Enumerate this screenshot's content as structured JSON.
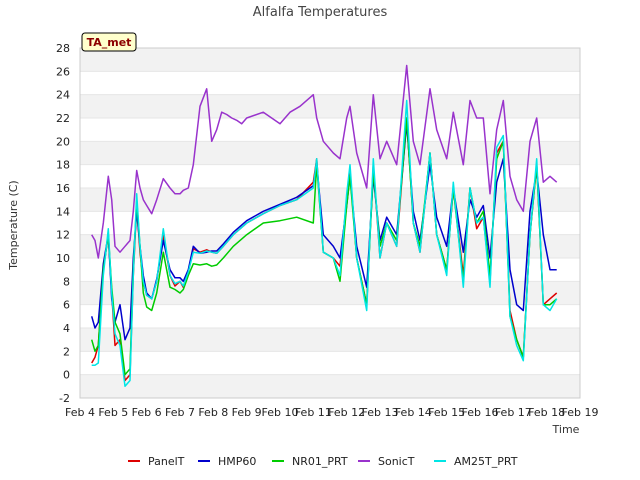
{
  "chart_data": {
    "type": "line",
    "title": "Alfalfa Temperatures",
    "xlabel": "Time",
    "ylabel": "Temperature (C)",
    "tag": "TA_met",
    "ylim": [
      -2,
      28
    ],
    "yticks": [
      -2,
      0,
      2,
      4,
      6,
      8,
      10,
      12,
      14,
      16,
      18,
      20,
      22,
      24,
      26,
      28
    ],
    "xlim": [
      4,
      19
    ],
    "xticks": [
      {
        "value": 4,
        "label": "Feb 4"
      },
      {
        "value": 5,
        "label": "Feb 5"
      },
      {
        "value": 6,
        "label": "Feb 6"
      },
      {
        "value": 7,
        "label": "Feb 7"
      },
      {
        "value": 8,
        "label": "Feb 8"
      },
      {
        "value": 9,
        "label": "Feb 9"
      },
      {
        "value": 10,
        "label": "Feb 10"
      },
      {
        "value": 11,
        "label": "Feb 11"
      },
      {
        "value": 12,
        "label": "Feb 12"
      },
      {
        "value": 13,
        "label": "Feb 13"
      },
      {
        "value": 14,
        "label": "Feb 14"
      },
      {
        "value": 15,
        "label": "Feb 15"
      },
      {
        "value": 16,
        "label": "Feb 16"
      },
      {
        "value": 17,
        "label": "Feb 17"
      },
      {
        "value": 18,
        "label": "Feb 18"
      },
      {
        "value": 19,
        "label": "Feb 19"
      }
    ],
    "grid": "horizontal bands",
    "legend_position": "bottom",
    "series": [
      {
        "name": "PanelT",
        "color": "#dd0000",
        "x": [
          4.35,
          4.45,
          4.55,
          4.7,
          4.85,
          4.95,
          5.05,
          5.2,
          5.35,
          5.5,
          5.6,
          5.7,
          5.8,
          5.9,
          6.0,
          6.15,
          6.3,
          6.5,
          6.7,
          6.85,
          7.0,
          7.1,
          7.25,
          7.4,
          7.6,
          7.8,
          7.95,
          8.1,
          8.3,
          8.6,
          9.0,
          9.5,
          10.0,
          10.5,
          11.0,
          11.1,
          11.3,
          11.6,
          11.8,
          12.0,
          12.1,
          12.3,
          12.6,
          12.8,
          13.0,
          13.2,
          13.5,
          13.8,
          14.0,
          14.2,
          14.5,
          14.7,
          15.0,
          15.2,
          15.5,
          15.7,
          15.9,
          16.1,
          16.3,
          16.5,
          16.7,
          16.9,
          17.1,
          17.3,
          17.5,
          17.7,
          17.9,
          18.1,
          18.3
        ],
        "y": [
          1.0,
          1.5,
          2.5,
          9.0,
          12.0,
          7.0,
          2.5,
          3.0,
          -0.5,
          0.0,
          8.5,
          14.5,
          10.5,
          8.0,
          6.8,
          6.5,
          8.0,
          12.0,
          8.5,
          7.6,
          8.0,
          7.5,
          8.8,
          10.8,
          10.5,
          10.7,
          10.5,
          10.4,
          11.0,
          12.0,
          13.0,
          13.8,
          14.5,
          15.0,
          16.5,
          18.5,
          10.5,
          10.0,
          9.3,
          15.0,
          17.5,
          10.0,
          6.0,
          18.0,
          10.0,
          13.0,
          11.0,
          22.0,
          13.0,
          10.5,
          19.0,
          12.0,
          9.0,
          16.0,
          8.5,
          16.0,
          12.5,
          13.5,
          8.0,
          19.0,
          20.0,
          5.5,
          3.0,
          1.5,
          12.0,
          18.0,
          6.0,
          6.5,
          7.0
        ]
      },
      {
        "name": "HMP60",
        "color": "#0000cc",
        "x": [
          4.35,
          4.45,
          4.55,
          4.7,
          4.85,
          4.95,
          5.05,
          5.2,
          5.35,
          5.5,
          5.6,
          5.7,
          5.8,
          5.9,
          6.0,
          6.15,
          6.3,
          6.5,
          6.7,
          6.85,
          7.0,
          7.1,
          7.25,
          7.4,
          7.6,
          7.8,
          7.95,
          8.1,
          8.3,
          8.6,
          9.0,
          9.5,
          10.0,
          10.5,
          11.0,
          11.1,
          11.3,
          11.6,
          11.8,
          12.0,
          12.1,
          12.3,
          12.6,
          12.8,
          13.0,
          13.2,
          13.5,
          13.8,
          14.0,
          14.2,
          14.5,
          14.7,
          15.0,
          15.2,
          15.5,
          15.7,
          15.9,
          16.1,
          16.3,
          16.5,
          16.7,
          16.9,
          17.1,
          17.3,
          17.5,
          17.7,
          17.9,
          18.1,
          18.3
        ],
        "y": [
          5.0,
          4.0,
          4.5,
          9.5,
          12.0,
          6.5,
          4.5,
          6.0,
          3.0,
          4.0,
          10.0,
          14.0,
          11.0,
          8.5,
          7.0,
          6.5,
          8.2,
          11.5,
          9.0,
          8.3,
          8.3,
          8.0,
          9.0,
          11.0,
          10.4,
          10.5,
          10.6,
          10.6,
          11.2,
          12.2,
          13.2,
          14.0,
          14.6,
          15.2,
          16.2,
          18.0,
          12.0,
          11.0,
          10.0,
          14.5,
          17.0,
          11.0,
          7.5,
          17.0,
          11.5,
          13.5,
          12.0,
          21.5,
          14.0,
          11.5,
          18.0,
          13.5,
          11.0,
          16.0,
          10.5,
          15.0,
          13.5,
          14.5,
          10.0,
          16.5,
          18.5,
          9.0,
          6.0,
          5.5,
          14.0,
          17.5,
          12.0,
          9.0,
          9.0
        ]
      },
      {
        "name": "NR01_PRT",
        "color": "#00cc00",
        "x": [
          4.35,
          4.45,
          4.55,
          4.7,
          4.85,
          4.95,
          5.05,
          5.2,
          5.35,
          5.5,
          5.6,
          5.7,
          5.8,
          5.9,
          6.0,
          6.15,
          6.3,
          6.5,
          6.7,
          6.85,
          7.0,
          7.1,
          7.25,
          7.4,
          7.6,
          7.8,
          7.95,
          8.1,
          8.3,
          8.6,
          9.0,
          9.5,
          10.0,
          10.5,
          11.0,
          11.1,
          11.3,
          11.6,
          11.8,
          12.0,
          12.1,
          12.3,
          12.6,
          12.8,
          13.0,
          13.2,
          13.5,
          13.8,
          14.0,
          14.2,
          14.5,
          14.7,
          15.0,
          15.2,
          15.5,
          15.7,
          15.9,
          16.1,
          16.3,
          16.5,
          16.7,
          16.9,
          17.1,
          17.3,
          17.5,
          17.7,
          17.9,
          18.1,
          18.3
        ],
        "y": [
          3.0,
          2.0,
          2.5,
          9.0,
          12.0,
          7.5,
          4.5,
          3.5,
          0.0,
          0.5,
          9.0,
          15.0,
          11.0,
          7.0,
          5.8,
          5.5,
          7.0,
          10.5,
          7.5,
          7.3,
          7.0,
          7.3,
          8.5,
          9.5,
          9.4,
          9.5,
          9.3,
          9.4,
          10.0,
          11.0,
          12.0,
          13.0,
          13.2,
          13.5,
          13.0,
          18.0,
          10.5,
          10.0,
          8.0,
          14.5,
          17.0,
          10.0,
          6.0,
          17.5,
          11.0,
          13.0,
          11.5,
          22.0,
          13.0,
          11.0,
          19.0,
          12.0,
          9.0,
          16.0,
          8.0,
          16.0,
          13.0,
          14.0,
          8.5,
          18.5,
          20.0,
          5.0,
          3.0,
          1.5,
          12.0,
          18.0,
          6.0,
          6.0,
          6.5
        ]
      },
      {
        "name": "SonicT",
        "color": "#9933cc",
        "x": [
          4.35,
          4.45,
          4.55,
          4.7,
          4.85,
          4.95,
          5.05,
          5.2,
          5.35,
          5.5,
          5.6,
          5.7,
          5.8,
          5.9,
          6.0,
          6.15,
          6.3,
          6.5,
          6.7,
          6.85,
          7.0,
          7.1,
          7.25,
          7.4,
          7.6,
          7.8,
          7.95,
          8.1,
          8.25,
          8.4,
          8.55,
          8.7,
          8.85,
          9.0,
          9.5,
          10.0,
          10.3,
          10.6,
          11.0,
          11.1,
          11.3,
          11.6,
          11.8,
          12.0,
          12.1,
          12.3,
          12.6,
          12.8,
          13.0,
          13.2,
          13.5,
          13.8,
          14.0,
          14.2,
          14.5,
          14.7,
          15.0,
          15.2,
          15.5,
          15.7,
          15.9,
          16.1,
          16.3,
          16.5,
          16.7,
          16.9,
          17.1,
          17.3,
          17.5,
          17.7,
          17.9,
          18.1,
          18.3
        ],
        "y": [
          12.0,
          11.5,
          10.0,
          13.0,
          17.0,
          15.0,
          11.0,
          10.5,
          11.0,
          11.5,
          14.0,
          17.5,
          16.0,
          15.0,
          14.5,
          13.8,
          15.0,
          16.8,
          16.0,
          15.5,
          15.5,
          15.8,
          16.0,
          18.0,
          23.0,
          24.5,
          20.0,
          21.0,
          22.5,
          22.3,
          22.0,
          21.8,
          21.5,
          22.0,
          22.5,
          21.5,
          22.5,
          23.0,
          24.0,
          22.0,
          20.0,
          19.0,
          18.5,
          22.0,
          23.0,
          19.0,
          16.0,
          24.0,
          18.5,
          20.0,
          18.0,
          26.5,
          20.0,
          18.0,
          24.5,
          21.0,
          18.5,
          22.5,
          18.0,
          23.5,
          22.0,
          22.0,
          15.5,
          21.0,
          23.5,
          17.0,
          15.0,
          14.0,
          20.0,
          22.0,
          16.5,
          17.0,
          16.5
        ]
      },
      {
        "name": "AM25T_PRT",
        "color": "#00e5e5",
        "x": [
          4.35,
          4.45,
          4.55,
          4.7,
          4.85,
          4.95,
          5.05,
          5.2,
          5.35,
          5.5,
          5.6,
          5.7,
          5.8,
          5.9,
          6.0,
          6.15,
          6.3,
          6.5,
          6.7,
          6.85,
          7.0,
          7.1,
          7.25,
          7.4,
          7.6,
          7.8,
          7.95,
          8.1,
          8.3,
          8.6,
          9.0,
          9.5,
          10.0,
          10.5,
          11.0,
          11.1,
          11.3,
          11.6,
          11.8,
          12.0,
          12.1,
          12.3,
          12.6,
          12.8,
          13.0,
          13.2,
          13.5,
          13.8,
          14.0,
          14.2,
          14.5,
          14.7,
          15.0,
          15.2,
          15.5,
          15.7,
          15.9,
          16.1,
          16.3,
          16.5,
          16.7,
          16.9,
          17.1,
          17.3,
          17.5,
          17.7,
          17.9,
          18.1,
          18.3
        ],
        "y": [
          0.8,
          0.8,
          1.0,
          8.5,
          12.5,
          7.0,
          3.5,
          2.5,
          -1.0,
          -0.5,
          8.5,
          15.5,
          11.0,
          8.0,
          6.8,
          6.5,
          8.0,
          12.5,
          8.5,
          7.8,
          8.0,
          7.6,
          8.8,
          10.5,
          10.4,
          10.6,
          10.5,
          10.4,
          11.0,
          12.0,
          13.0,
          13.8,
          14.5,
          15.0,
          16.0,
          18.5,
          10.5,
          10.0,
          8.5,
          15.5,
          18.0,
          10.0,
          5.5,
          18.5,
          10.0,
          13.0,
          11.0,
          23.5,
          13.0,
          10.5,
          19.0,
          12.0,
          8.5,
          16.5,
          7.5,
          16.0,
          13.0,
          13.5,
          7.5,
          19.5,
          20.5,
          5.0,
          2.5,
          1.2,
          12.0,
          18.5,
          6.0,
          5.5,
          6.5
        ]
      }
    ]
  }
}
